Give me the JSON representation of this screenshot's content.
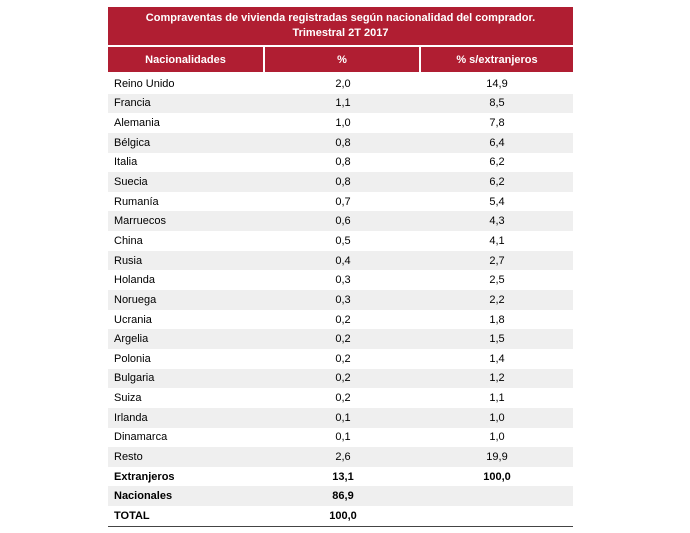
{
  "table": {
    "title_line1": "Compraventas de vivienda registradas según nacionalidad del comprador.",
    "title_line2": "Trimestral 2T 2017",
    "headers": [
      "Nacionalidades",
      "%",
      "% s/extranjeros"
    ],
    "rows": [
      {
        "name": "Reino Unido",
        "pct": "2,0",
        "pct_ext": "14,9"
      },
      {
        "name": "Francia",
        "pct": "1,1",
        "pct_ext": "8,5"
      },
      {
        "name": "Alemania",
        "pct": "1,0",
        "pct_ext": "7,8"
      },
      {
        "name": "Bélgica",
        "pct": "0,8",
        "pct_ext": "6,4"
      },
      {
        "name": "Italia",
        "pct": "0,8",
        "pct_ext": "6,2"
      },
      {
        "name": "Suecia",
        "pct": "0,8",
        "pct_ext": "6,2"
      },
      {
        "name": "Rumanía",
        "pct": "0,7",
        "pct_ext": "5,4"
      },
      {
        "name": "Marruecos",
        "pct": "0,6",
        "pct_ext": "4,3"
      },
      {
        "name": "China",
        "pct": "0,5",
        "pct_ext": "4,1"
      },
      {
        "name": "Rusia",
        "pct": "0,4",
        "pct_ext": "2,7"
      },
      {
        "name": "Holanda",
        "pct": "0,3",
        "pct_ext": "2,5"
      },
      {
        "name": "Noruega",
        "pct": "0,3",
        "pct_ext": "2,2"
      },
      {
        "name": "Ucrania",
        "pct": "0,2",
        "pct_ext": "1,8"
      },
      {
        "name": "Argelia",
        "pct": "0,2",
        "pct_ext": "1,5"
      },
      {
        "name": "Polonia",
        "pct": "0,2",
        "pct_ext": "1,4"
      },
      {
        "name": "Bulgaria",
        "pct": "0,2",
        "pct_ext": "1,2"
      },
      {
        "name": "Suiza",
        "pct": "0,2",
        "pct_ext": "1,1"
      },
      {
        "name": "Irlanda",
        "pct": "0,1",
        "pct_ext": "1,0"
      },
      {
        "name": "Dinamarca",
        "pct": "0,1",
        "pct_ext": "1,0"
      },
      {
        "name": "Resto",
        "pct": "2,6",
        "pct_ext": "19,9"
      }
    ],
    "summary_rows": [
      {
        "name": "Extranjeros",
        "pct": "13,1",
        "pct_ext": "100,0"
      },
      {
        "name": "Nacionales",
        "pct": "86,9",
        "pct_ext": ""
      },
      {
        "name": "TOTAL",
        "pct": "100,0",
        "pct_ext": ""
      }
    ],
    "colors": {
      "header_bg": "#b01e32",
      "header_text": "#ffffff",
      "stripe": "#efefef"
    }
  }
}
